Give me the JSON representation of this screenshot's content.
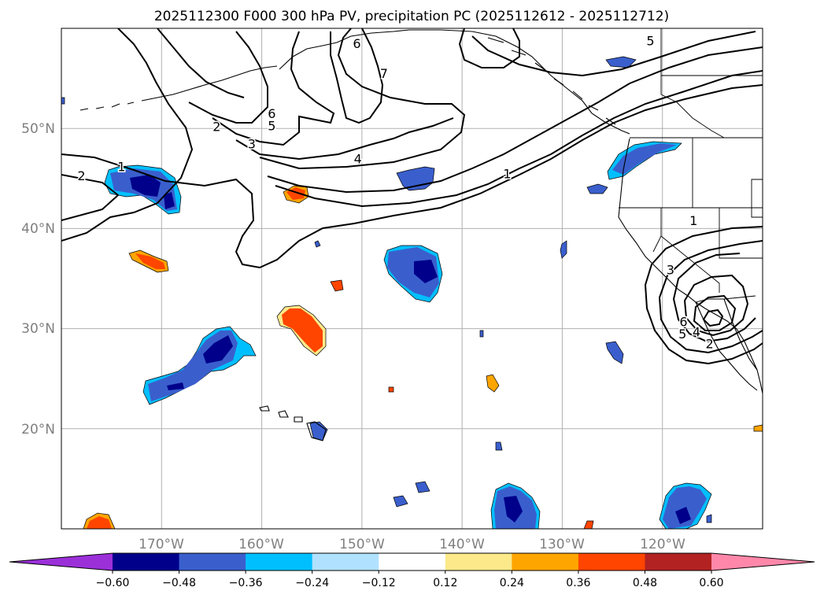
{
  "title": "2025112300 F000 300 hPa PV, precipitation PC (2025112612 - 2025112712)",
  "lat_labels": [
    "50°N",
    "40°N",
    "30°N",
    "20°N"
  ],
  "lon_labels": [
    "170°W",
    "160°W",
    "150°W",
    "140°W",
    "130°W",
    "120°W"
  ],
  "colorbar": {
    "tick_labels": [
      "−0.60",
      "−0.48",
      "−0.36",
      "−0.24",
      "−0.12",
      "0.12",
      "0.24",
      "0.36",
      "0.48",
      "0.60"
    ],
    "colors": [
      "#9b30d9",
      "#00008b",
      "#3a5fcd",
      "#00bfff",
      "#b0e2ff",
      "#ffffff",
      "#fce98a",
      "#ffa500",
      "#ff4500",
      "#b22222",
      "#ff88aa"
    ]
  },
  "contour_labels": [
    {
      "text": "2",
      "lon": -178.0,
      "lat": 45.3
    },
    {
      "text": "1",
      "lon": -174.0,
      "lat": 46.2
    },
    {
      "text": "2",
      "lon": -164.5,
      "lat": 50.2
    },
    {
      "text": "3",
      "lon": -161.0,
      "lat": 48.5
    },
    {
      "text": "5",
      "lon": -159.0,
      "lat": 50.3
    },
    {
      "text": "6",
      "lon": -159.0,
      "lat": 51.5
    },
    {
      "text": "4",
      "lon": -150.4,
      "lat": 47.0
    },
    {
      "text": "6",
      "lon": -150.5,
      "lat": 58.5
    },
    {
      "text": "7",
      "lon": -147.8,
      "lat": 55.5
    },
    {
      "text": "1",
      "lon": -135.5,
      "lat": 45.5
    },
    {
      "text": "5",
      "lon": -121.2,
      "lat": 58.8
    },
    {
      "text": "1",
      "lon": -116.9,
      "lat": 40.8
    },
    {
      "text": "3",
      "lon": -119.2,
      "lat": 35.9
    },
    {
      "text": "5",
      "lon": -118.0,
      "lat": 29.5
    },
    {
      "text": "6",
      "lon": -117.9,
      "lat": 30.7
    },
    {
      "text": "4",
      "lon": -116.6,
      "lat": 29.7
    },
    {
      "text": "2",
      "lon": -115.3,
      "lat": 28.5
    }
  ],
  "chart_data": {
    "type": "map",
    "title": "2025112300 F000 300 hPa PV, precipitation PC (2025112612 - 2025112712)",
    "extent": {
      "lon_min": -180,
      "lon_max": -110,
      "lat_min": 10,
      "lat_max": 60
    },
    "gridlines": {
      "lons": [
        -170,
        -160,
        -150,
        -140,
        -130,
        -120
      ],
      "lats": [
        20,
        30,
        40,
        50
      ]
    },
    "colorbar_levels": [
      -0.6,
      -0.48,
      -0.36,
      -0.24,
      -0.12,
      0.12,
      0.24,
      0.36,
      0.48,
      0.6
    ],
    "colorbar_extend": "both",
    "pv_contour_levels": [
      1,
      2,
      3,
      4,
      5,
      6,
      7
    ]
  }
}
